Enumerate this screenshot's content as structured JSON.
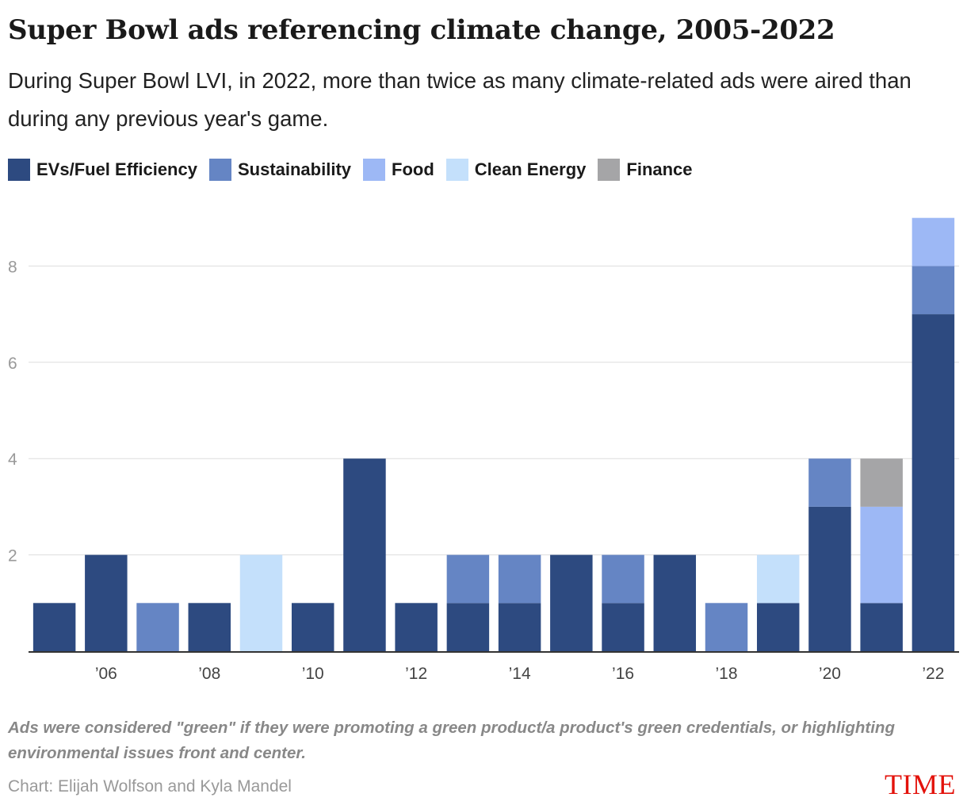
{
  "title": "Super Bowl ads referencing climate change, 2005-2022",
  "subtitle": "During Super Bowl LVI, in 2022, more than twice as many climate-related ads were aired than during any previous year's game.",
  "note": "Ads were considered \"green\" if they were promoting a green product/a product's green credentials, or highlighting environmental issues front and center.",
  "credit": "Chart: Elijah Wolfson and Kyla Mandel",
  "logo": "TIME",
  "chart_data": {
    "type": "bar",
    "stacked": true,
    "categories": [
      "2005",
      "2006",
      "2007",
      "2008",
      "2009",
      "2010",
      "2011",
      "2012",
      "2013",
      "2014",
      "2015",
      "2016",
      "2017",
      "2018",
      "2019",
      "2020",
      "2021",
      "2022"
    ],
    "x_tick_labels": [
      {
        "category": "2006",
        "label": "’06"
      },
      {
        "category": "2008",
        "label": "’08"
      },
      {
        "category": "2010",
        "label": "’10"
      },
      {
        "category": "2012",
        "label": "’12"
      },
      {
        "category": "2014",
        "label": "’14"
      },
      {
        "category": "2016",
        "label": "’16"
      },
      {
        "category": "2018",
        "label": "’18"
      },
      {
        "category": "2020",
        "label": "’20"
      },
      {
        "category": "2022",
        "label": "’22"
      }
    ],
    "y_ticks": [
      2,
      4,
      6,
      8
    ],
    "ylim": [
      0,
      9
    ],
    "grid": true,
    "legend_position": "top-left",
    "series": [
      {
        "name": "EVs/Fuel Efficiency",
        "color": "#2d4a80",
        "values": [
          1,
          2,
          0,
          1,
          0,
          1,
          4,
          1,
          1,
          1,
          2,
          1,
          2,
          0,
          1,
          3,
          1,
          7
        ]
      },
      {
        "name": "Sustainability",
        "color": "#6585c4",
        "values": [
          0,
          0,
          1,
          0,
          0,
          0,
          0,
          0,
          1,
          1,
          0,
          1,
          0,
          1,
          0,
          1,
          0,
          1
        ]
      },
      {
        "name": "Food",
        "color": "#9db8f5",
        "values": [
          0,
          0,
          0,
          0,
          0,
          0,
          0,
          0,
          0,
          0,
          0,
          0,
          0,
          0,
          0,
          0,
          2,
          1
        ]
      },
      {
        "name": "Clean Energy",
        "color": "#c4e0fb",
        "values": [
          0,
          0,
          0,
          0,
          2,
          0,
          0,
          0,
          0,
          0,
          0,
          0,
          0,
          0,
          1,
          0,
          0,
          0
        ]
      },
      {
        "name": "Finance",
        "color": "#a5a5a7",
        "values": [
          0,
          0,
          0,
          0,
          0,
          0,
          0,
          0,
          0,
          0,
          0,
          0,
          0,
          0,
          0,
          0,
          1,
          0
        ]
      }
    ]
  }
}
